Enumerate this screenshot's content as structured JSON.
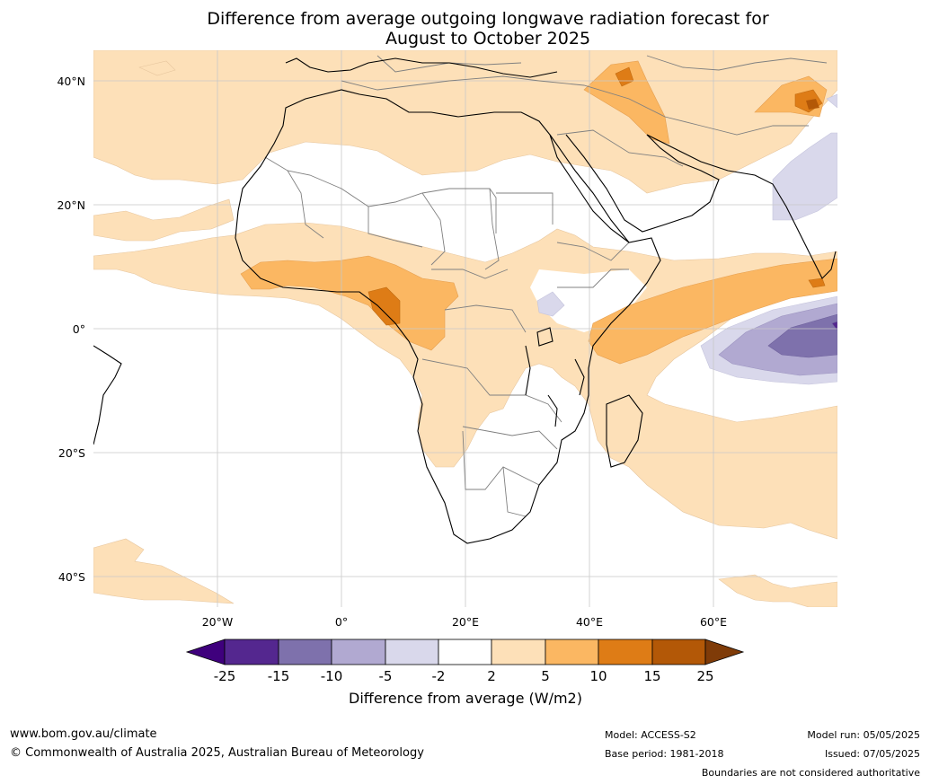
{
  "title": {
    "line1": "Difference from average outgoing longwave radiation forecast for",
    "line2": "August to October 2025"
  },
  "map": {
    "lat_labels": [
      "40°N",
      "20°N",
      "0°",
      "20°S",
      "40°S"
    ],
    "lon_labels": [
      "20°W",
      "0°",
      "20°E",
      "40°E",
      "60°E"
    ],
    "colors": {
      "ocean": "#ffffff",
      "coast": "#000000",
      "borders": "#808080",
      "grid": "#c8c8c8"
    }
  },
  "colorbar": {
    "ticks": [
      "-25",
      "-15",
      "-10",
      "-5",
      "-2",
      "2",
      "5",
      "10",
      "15",
      "25"
    ],
    "bin_colors": [
      "#3f007d",
      "#54278f",
      "#7e71ac",
      "#b1a9d1",
      "#d9d8eb",
      "#ffffff",
      "#fde0b8",
      "#fbb762",
      "#de7c16",
      "#b35807",
      "#7f3b08"
    ],
    "label": "Difference from average (W/m2)"
  },
  "footer": {
    "url": "www.bom.gov.au/climate",
    "copyright": "© Commonwealth of Australia 2025, Australian Bureau of Meteorology",
    "model": "Model: ACCESS-S2",
    "base_period": "Base period: 1981-2018",
    "model_run": "Model run: 05/05/2025",
    "issued": "Issued: 07/05/2025",
    "disclaimer": "Boundaries are not considered authoritative"
  }
}
